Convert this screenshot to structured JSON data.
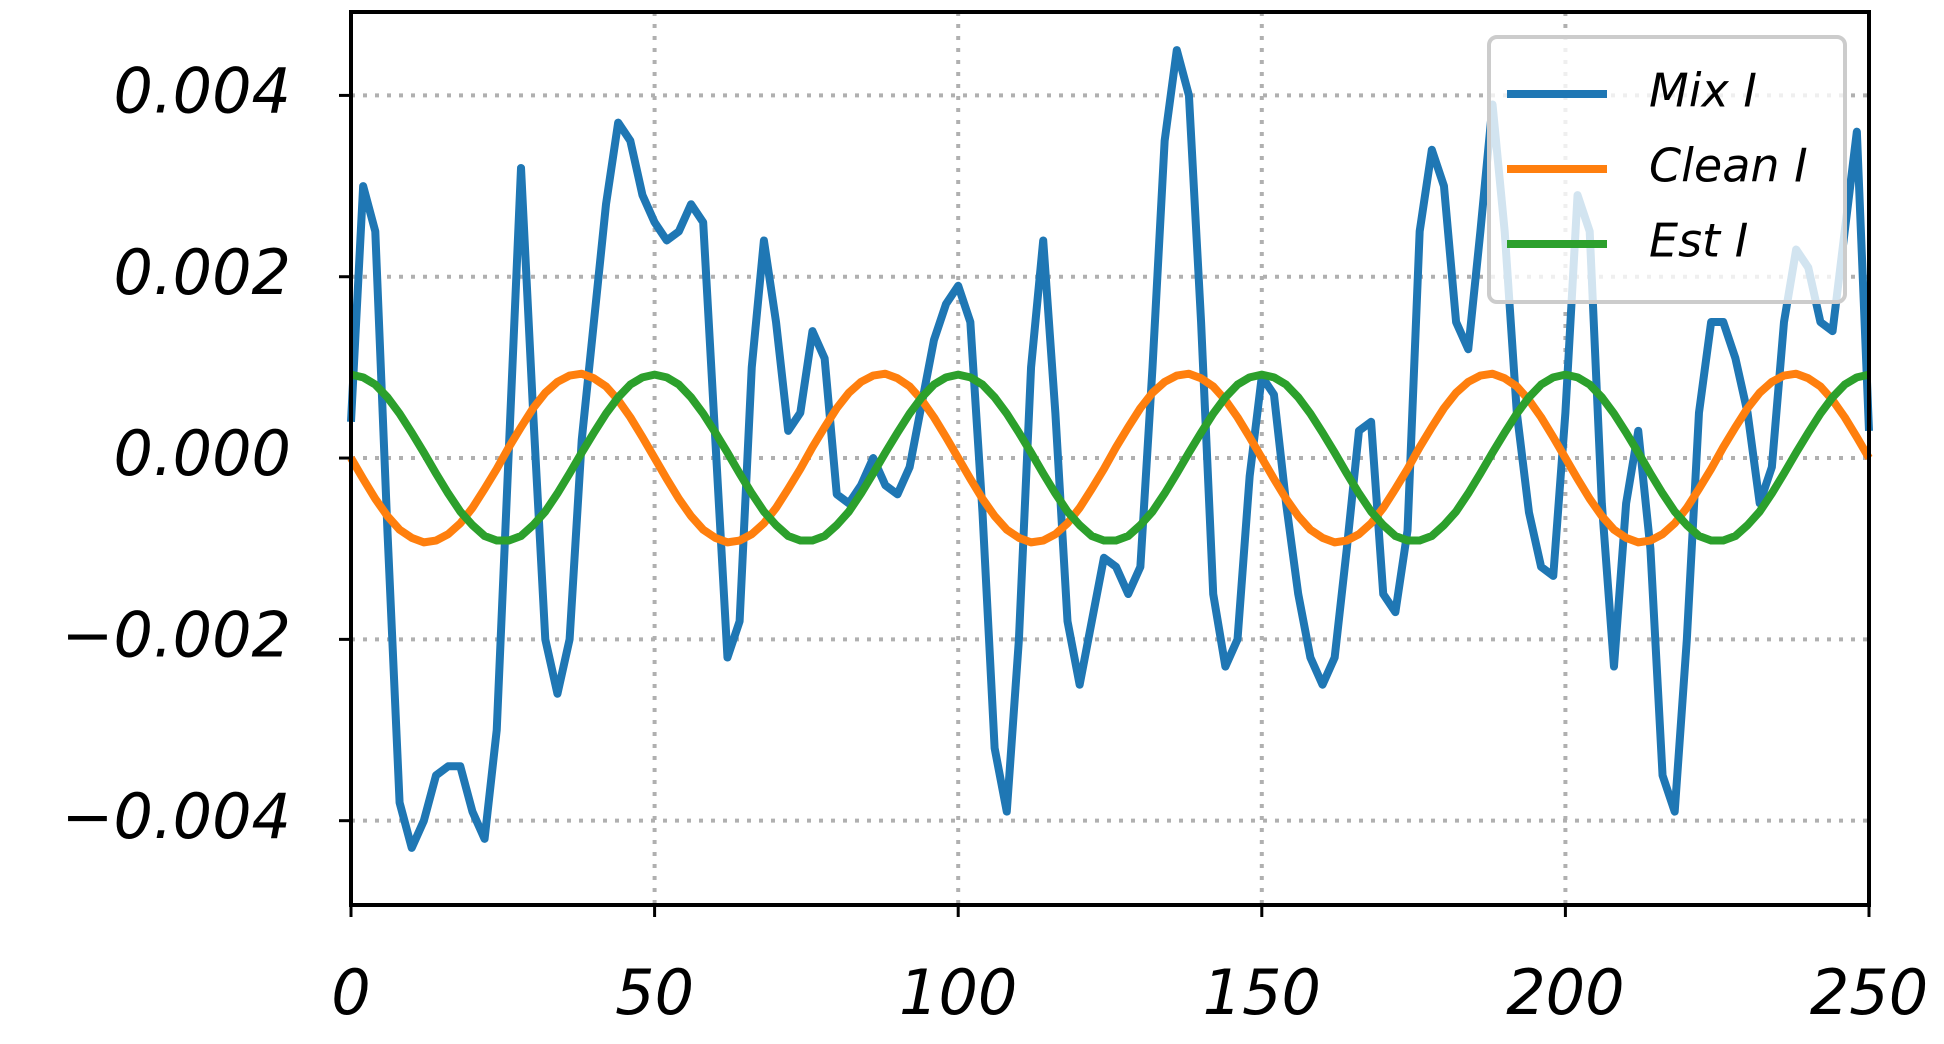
{
  "chart_data": {
    "type": "line",
    "x": [
      0,
      2,
      4,
      6,
      8,
      10,
      12,
      14,
      16,
      18,
      20,
      22,
      24,
      26,
      28,
      30,
      32,
      34,
      36,
      38,
      40,
      42,
      44,
      46,
      48,
      50,
      52,
      54,
      56,
      58,
      60,
      62,
      64,
      66,
      68,
      70,
      72,
      74,
      76,
      78,
      80,
      82,
      84,
      86,
      88,
      90,
      92,
      94,
      96,
      98,
      100,
      102,
      104,
      106,
      108,
      110,
      112,
      114,
      116,
      118,
      120,
      122,
      124,
      126,
      128,
      130,
      132,
      134,
      136,
      138,
      140,
      142,
      144,
      146,
      148,
      150,
      152,
      154,
      156,
      158,
      160,
      162,
      164,
      166,
      168,
      170,
      172,
      174,
      176,
      178,
      180,
      182,
      184,
      186,
      188,
      190,
      192,
      194,
      196,
      198,
      200,
      202,
      204,
      206,
      208,
      210,
      212,
      214,
      216,
      218,
      220,
      222,
      224,
      226,
      228,
      230,
      232,
      234,
      236,
      238,
      240,
      242,
      244,
      246,
      248,
      250
    ],
    "series": [
      {
        "name": "Mix I",
        "color": "#1f77b4",
        "values": [
          0.0004,
          0.003,
          0.0025,
          -0.0008,
          -0.0038,
          -0.0043,
          -0.004,
          -0.0035,
          -0.0034,
          -0.0034,
          -0.0039,
          -0.0042,
          -0.003,
          0.0001,
          0.0032,
          0.0005,
          -0.002,
          -0.0026,
          -0.002,
          0.0002,
          0.0015,
          0.0028,
          0.0037,
          0.0035,
          0.0029,
          0.0026,
          0.0024,
          0.0025,
          0.0028,
          0.0026,
          0.0002,
          -0.0022,
          -0.0018,
          0.001,
          0.0024,
          0.0015,
          0.0003,
          0.0005,
          0.0014,
          0.0011,
          -0.0004,
          -0.0005,
          -0.0003,
          0,
          -0.0003,
          -0.0004,
          -0.0001,
          0.0006,
          0.0013,
          0.0017,
          0.0019,
          0.0015,
          -0.0006,
          -0.0032,
          -0.0039,
          -0.002,
          0.001,
          0.0024,
          0.0005,
          -0.0018,
          -0.0025,
          -0.0018,
          -0.0011,
          -0.0012,
          -0.0015,
          -0.0012,
          0.001,
          0.0035,
          0.0045,
          0.004,
          0.0015,
          -0.0015,
          -0.0023,
          -0.002,
          -0.0002,
          0.0009,
          0.0007,
          -0.0005,
          -0.0015,
          -0.0022,
          -0.0025,
          -0.0022,
          -0.001,
          0.0003,
          0.0004,
          -0.0015,
          -0.0017,
          -0.0008,
          0.0025,
          0.0034,
          0.003,
          0.0015,
          0.0012,
          0.0025,
          0.0039,
          0.0025,
          0.0005,
          -0.0006,
          -0.0012,
          -0.0013,
          0.0005,
          0.0029,
          0.0025,
          -0.0005,
          -0.0023,
          -0.0005,
          0.0003,
          -0.001,
          -0.0035,
          -0.0039,
          -0.002,
          0.0005,
          0.0015,
          0.0015,
          0.0011,
          0.0005,
          -0.0005,
          -0.0001,
          0.0015,
          0.0023,
          0.0021,
          0.0015,
          0.0014,
          0.0025,
          0.0036,
          0.0003
        ]
      },
      {
        "name": "Clean I",
        "color": "#ff7f0e",
        "values": [
          0,
          -0.00023,
          -0.00045,
          -0.00064,
          -0.00079,
          -0.00088,
          -0.00093,
          -0.00091,
          -0.00084,
          -0.00072,
          -0.00055,
          -0.00034,
          -0.00012,
          0.00012,
          0.00034,
          0.00055,
          0.00072,
          0.00084,
          0.00091,
          0.00093,
          0.00088,
          0.00079,
          0.00064,
          0.00045,
          0.00023,
          0,
          -0.00023,
          -0.00045,
          -0.00064,
          -0.00079,
          -0.00088,
          -0.00093,
          -0.00091,
          -0.00084,
          -0.00072,
          -0.00055,
          -0.00034,
          -0.00012,
          0.00012,
          0.00034,
          0.00055,
          0.00072,
          0.00084,
          0.00091,
          0.00093,
          0.00088,
          0.00079,
          0.00064,
          0.00045,
          0.00023,
          0,
          -0.00023,
          -0.00045,
          -0.00064,
          -0.00079,
          -0.00088,
          -0.00093,
          -0.00091,
          -0.00084,
          -0.00072,
          -0.00055,
          -0.00034,
          -0.00012,
          0.00012,
          0.00034,
          0.00055,
          0.00072,
          0.00084,
          0.00091,
          0.00093,
          0.00088,
          0.00079,
          0.00064,
          0.00045,
          0.00023,
          0,
          -0.00023,
          -0.00045,
          -0.00064,
          -0.00079,
          -0.00088,
          -0.00093,
          -0.00091,
          -0.00084,
          -0.00072,
          -0.00055,
          -0.00034,
          -0.00012,
          0.00012,
          0.00034,
          0.00055,
          0.00072,
          0.00084,
          0.00091,
          0.00093,
          0.00088,
          0.00079,
          0.00064,
          0.00045,
          0.00023,
          0,
          -0.00023,
          -0.00045,
          -0.00064,
          -0.00079,
          -0.00088,
          -0.00093,
          -0.00091,
          -0.00084,
          -0.00072,
          -0.00055,
          -0.00034,
          -0.00012,
          0.00012,
          0.00034,
          0.00055,
          0.00072,
          0.00084,
          0.00091,
          0.00093,
          0.00088,
          0.00079,
          0.00064,
          0.00045,
          0.00023,
          0
        ]
      },
      {
        "name": "Est I",
        "color": "#2ca02c",
        "values": [
          0.00092,
          0.00089,
          0.00081,
          0.00067,
          0.00049,
          0.00028,
          6e-05,
          -0.00017,
          -0.00039,
          -0.00059,
          -0.00074,
          -0.00086,
          -0.00091,
          -0.00091,
          -0.00086,
          -0.00074,
          -0.00059,
          -0.00039,
          -0.00017,
          6e-05,
          0.00028,
          0.00049,
          0.00067,
          0.00081,
          0.00089,
          0.00092,
          0.00089,
          0.00081,
          0.00067,
          0.00049,
          0.00028,
          6e-05,
          -0.00017,
          -0.00039,
          -0.00059,
          -0.00074,
          -0.00086,
          -0.00091,
          -0.00091,
          -0.00086,
          -0.00074,
          -0.00059,
          -0.00039,
          -0.00017,
          6e-05,
          0.00028,
          0.00049,
          0.00067,
          0.00081,
          0.00089,
          0.00092,
          0.00089,
          0.00081,
          0.00067,
          0.00049,
          0.00028,
          6e-05,
          -0.00017,
          -0.00039,
          -0.00059,
          -0.00074,
          -0.00086,
          -0.00091,
          -0.00091,
          -0.00086,
          -0.00074,
          -0.00059,
          -0.00039,
          -0.00017,
          6e-05,
          0.00028,
          0.00049,
          0.00067,
          0.00081,
          0.00089,
          0.00092,
          0.00089,
          0.00081,
          0.00067,
          0.00049,
          0.00028,
          6e-05,
          -0.00017,
          -0.00039,
          -0.00059,
          -0.00074,
          -0.00086,
          -0.00091,
          -0.00091,
          -0.00086,
          -0.00074,
          -0.00059,
          -0.00039,
          -0.00017,
          6e-05,
          0.00028,
          0.00049,
          0.00067,
          0.00081,
          0.00089,
          0.00092,
          0.00089,
          0.00081,
          0.00067,
          0.00049,
          0.00028,
          6e-05,
          -0.00017,
          -0.00039,
          -0.00059,
          -0.00074,
          -0.00086,
          -0.00091,
          -0.00091,
          -0.00086,
          -0.00074,
          -0.00059,
          -0.00039,
          -0.00017,
          6e-05,
          0.00028,
          0.00049,
          0.00067,
          0.00081,
          0.00089,
          0.00092
        ]
      }
    ],
    "xlim": [
      0,
      250
    ],
    "xticks": [
      0,
      50,
      100,
      150,
      200,
      250
    ],
    "ylim": [
      -0.00493,
      0.00492
    ],
    "yticks": [
      {
        "value": -0.004,
        "label": "−0.004"
      },
      {
        "value": -0.002,
        "label": "−0.002"
      },
      {
        "value": 0,
        "label": "0.000"
      },
      {
        "value": 0.002,
        "label": "0.002"
      },
      {
        "value": 0.004,
        "label": "0.004"
      }
    ],
    "grid": true,
    "legend": "upper right"
  }
}
